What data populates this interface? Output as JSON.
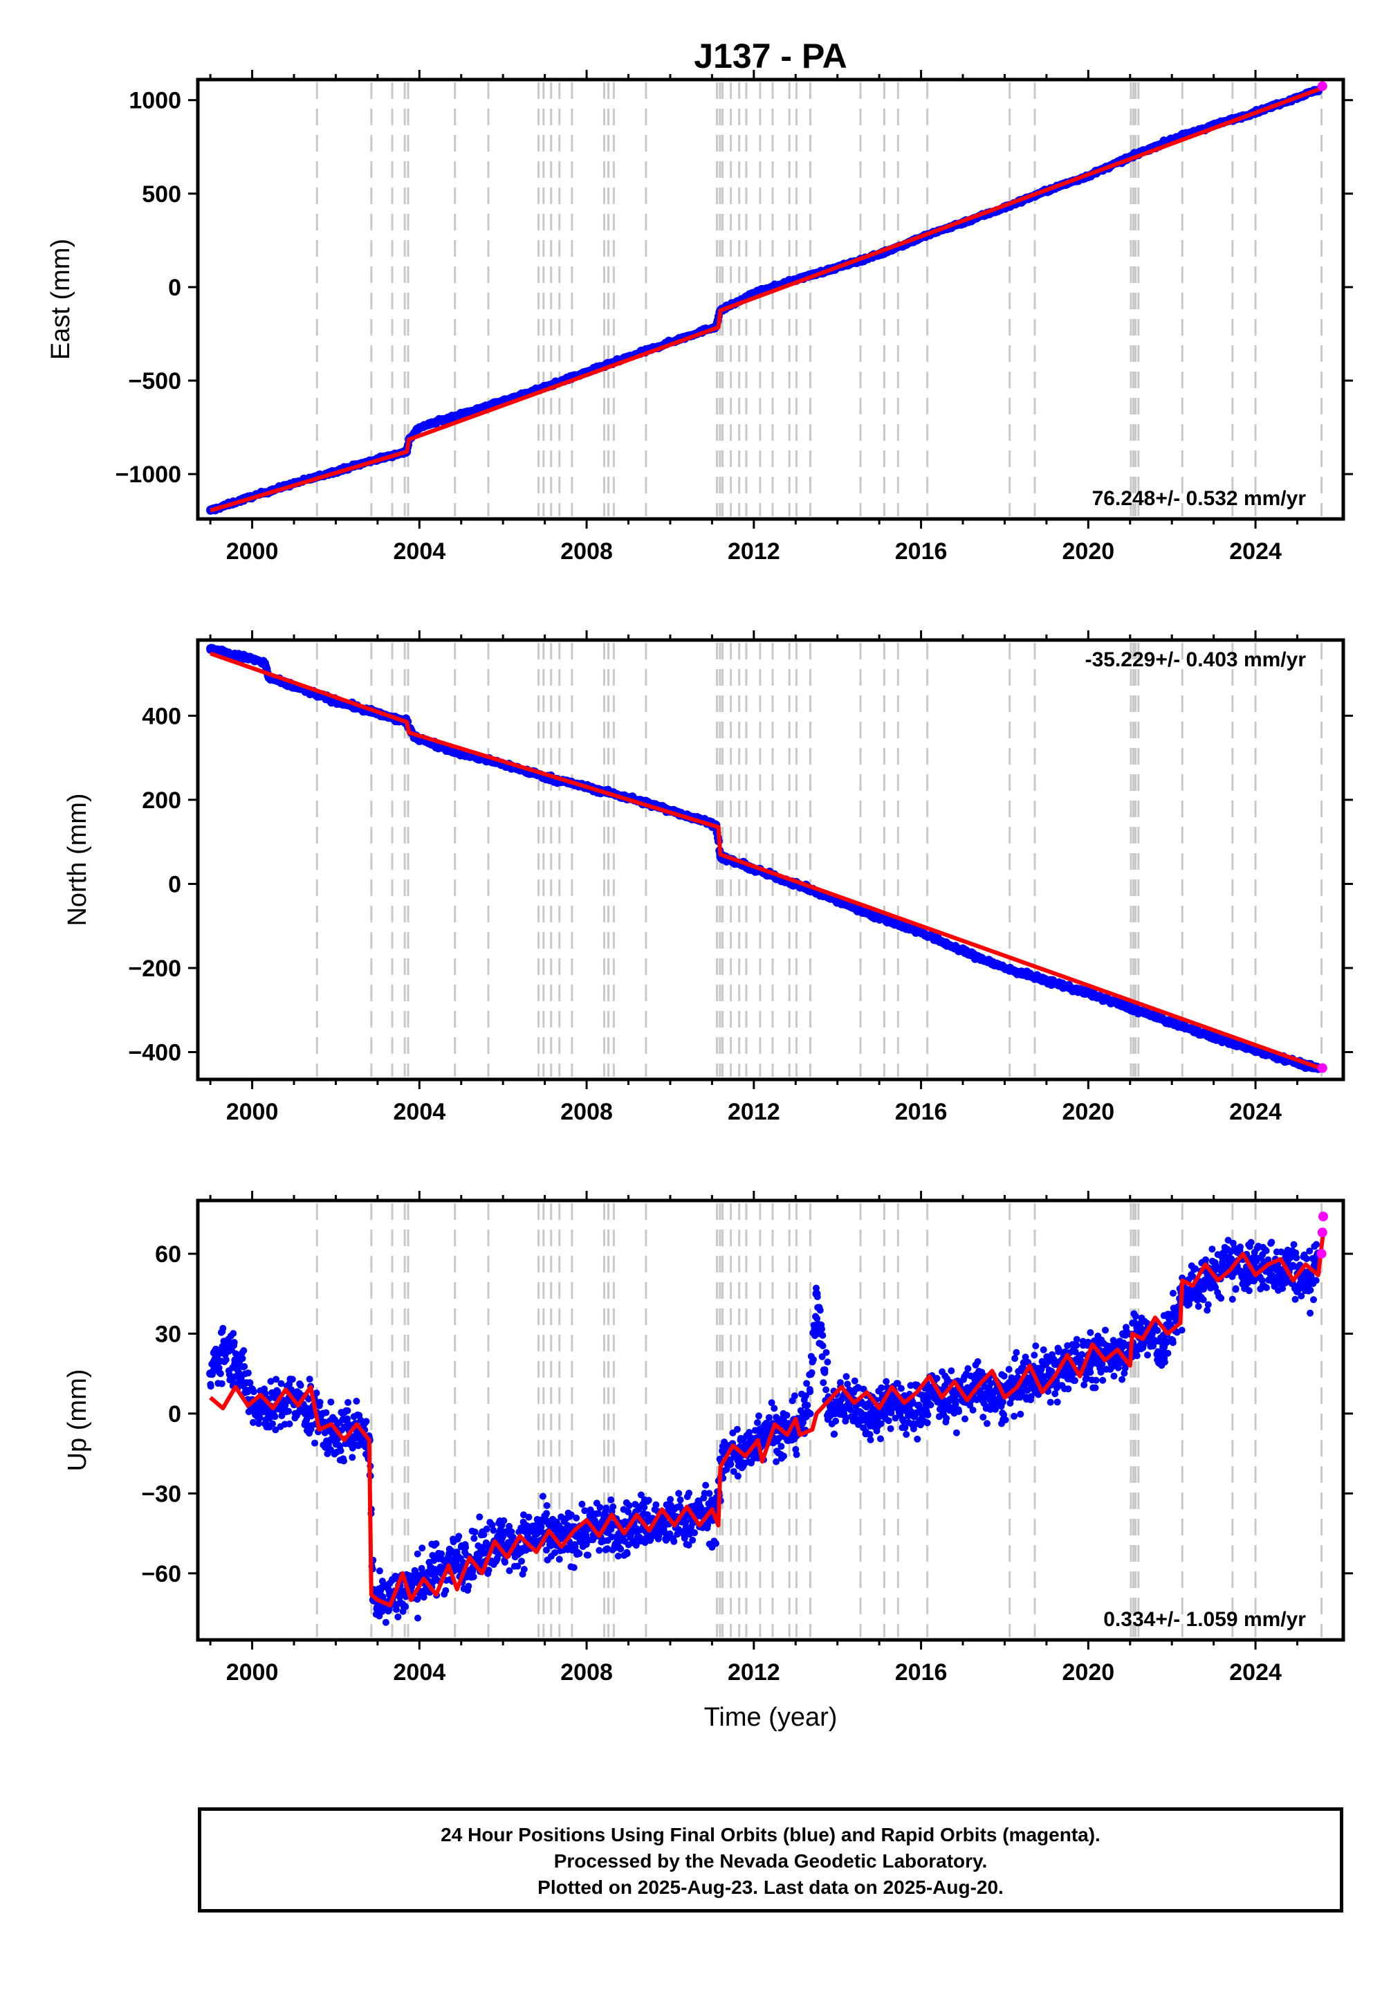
{
  "title": "J137 - PA",
  "chart_data": [
    {
      "type": "scatter",
      "panel": "east",
      "ylabel": "East (mm)",
      "xlabel": "",
      "xlim": [
        1998.7,
        2026.1
      ],
      "ylim": [
        -1240,
        1110
      ],
      "xticks": [
        2000,
        2004,
        2008,
        2012,
        2016,
        2020,
        2024
      ],
      "xtick_labels": [
        "2000",
        "2004",
        "2008",
        "2012",
        "2016",
        "2020",
        "2024"
      ],
      "yticks": [
        -1000,
        -500,
        0,
        500,
        1000
      ],
      "ytick_labels": [
        "−1000",
        "−500",
        "0",
        "500",
        "1000"
      ],
      "rate_label": "76.248+/- 0.532 mm/yr",
      "rate_position": "bottom-right",
      "series": [
        {
          "role": "final-orbits",
          "color": "#0000ff",
          "x": [
            1999.0,
            2000.0,
            2001.0,
            2002.0,
            2003.0,
            2003.7,
            2003.75,
            2004.0,
            2005.0,
            2006.0,
            2007.0,
            2008.0,
            2009.0,
            2010.0,
            2011.1,
            2011.2,
            2012.0,
            2013.0,
            2014.0,
            2015.0,
            2016.0,
            2017.0,
            2018.0,
            2019.0,
            2020.0,
            2021.0,
            2022.0,
            2023.0,
            2024.0,
            2025.5
          ],
          "y": [
            -1195,
            -1120,
            -1050,
            -985,
            -920,
            -880,
            -815,
            -750,
            -680,
            -610,
            -535,
            -455,
            -375,
            -295,
            -210,
            -125,
            -35,
            40,
            105,
            175,
            265,
            345,
            425,
            515,
            595,
            695,
            790,
            865,
            935,
            1055
          ]
        },
        {
          "role": "rapid-orbits",
          "color": "#ff00ff",
          "x": [
            2025.6
          ],
          "y": [
            1075
          ]
        }
      ],
      "model_line": {
        "color": "#ff0000",
        "x": [
          1999.0,
          2003.7,
          2003.75,
          2011.15,
          2011.2,
          2025.6
        ],
        "y": [
          -1195,
          -880,
          -815,
          -215,
          -125,
          1065
        ]
      }
    },
    {
      "type": "scatter",
      "panel": "north",
      "ylabel": "North (mm)",
      "xlabel": "",
      "xlim": [
        1998.7,
        2026.1
      ],
      "ylim": [
        -465,
        580
      ],
      "xticks": [
        2000,
        2004,
        2008,
        2012,
        2016,
        2020,
        2024
      ],
      "xtick_labels": [
        "2000",
        "2004",
        "2008",
        "2012",
        "2016",
        "2020",
        "2024"
      ],
      "yticks": [
        -400,
        -200,
        0,
        200,
        400
      ],
      "ytick_labels": [
        "−400",
        "−200",
        "0",
        "200",
        "400"
      ],
      "rate_label": "-35.229+/- 0.403 mm/yr",
      "rate_position": "top-right",
      "series": [
        {
          "role": "final-orbits",
          "color": "#0000ff",
          "x": [
            1999.0,
            1999.5,
            2000.0,
            2000.3,
            2000.4,
            2001.0,
            2002.0,
            2003.0,
            2003.7,
            2003.8,
            2004.0,
            2005.0,
            2006.0,
            2007.0,
            2008.0,
            2009.0,
            2010.0,
            2011.1,
            2011.2,
            2012.0,
            2013.0,
            2014.0,
            2015.0,
            2016.0,
            2017.0,
            2018.0,
            2019.0,
            2020.0,
            2021.0,
            2022.0,
            2023.0,
            2024.0,
            2025.5
          ],
          "y": [
            560,
            545,
            535,
            525,
            490,
            470,
            435,
            405,
            385,
            360,
            345,
            310,
            285,
            255,
            230,
            205,
            175,
            140,
            65,
            35,
            0,
            -40,
            -80,
            -115,
            -160,
            -200,
            -230,
            -260,
            -295,
            -330,
            -365,
            -395,
            -440
          ]
        },
        {
          "role": "rapid-orbits",
          "color": "#ff00ff",
          "x": [
            2025.6
          ],
          "y": [
            -438
          ]
        }
      ],
      "model_line": {
        "color": "#ff0000",
        "x": [
          1999.0,
          2003.7,
          2003.75,
          2011.15,
          2011.2,
          2025.6
        ],
        "y": [
          548,
          385,
          360,
          135,
          70,
          -440
        ]
      }
    },
    {
      "type": "scatter",
      "panel": "up",
      "ylabel": "Up (mm)",
      "xlabel": "Time (year)",
      "xlim": [
        1998.7,
        2026.1
      ],
      "ylim": [
        -85,
        80
      ],
      "xticks": [
        2000,
        2004,
        2008,
        2012,
        2016,
        2020,
        2024
      ],
      "xtick_labels": [
        "2000",
        "2004",
        "2008",
        "2012",
        "2016",
        "2020",
        "2024"
      ],
      "yticks": [
        -60,
        -30,
        0,
        30,
        60
      ],
      "ytick_labels": [
        "−60",
        "−30",
        "0",
        "30",
        "60"
      ],
      "rate_label": "0.334+/- 1.059 mm/yr",
      "rate_position": "bottom-right",
      "series": [
        {
          "role": "final-orbits",
          "color": "#0000ff",
          "x": [
            1999.0,
            1999.3,
            1999.6,
            2000.0,
            2000.5,
            2001.0,
            2001.5,
            2002.0,
            2002.5,
            2002.8,
            2002.9,
            2003.3,
            2003.8,
            2004.3,
            2004.8,
            2005.3,
            2005.8,
            2006.3,
            2006.8,
            2007.3,
            2007.8,
            2008.3,
            2008.8,
            2009.3,
            2009.8,
            2010.3,
            2010.8,
            2011.1,
            2011.3,
            2011.8,
            2012.3,
            2012.8,
            2013.3,
            2013.5,
            2013.8,
            2014.3,
            2014.8,
            2015.3,
            2015.8,
            2016.3,
            2016.8,
            2017.3,
            2017.8,
            2018.3,
            2018.8,
            2019.3,
            2019.8,
            2020.3,
            2020.8,
            2021.3,
            2021.8,
            2022.3,
            2022.8,
            2023.3,
            2023.8,
            2024.3,
            2024.8,
            2025.3,
            2025.5
          ],
          "y": [
            15,
            25,
            20,
            5,
            2,
            5,
            0,
            -10,
            -5,
            -10,
            -70,
            -68,
            -65,
            -60,
            -55,
            -55,
            -48,
            -50,
            -45,
            -48,
            -45,
            -42,
            -45,
            -40,
            -42,
            -40,
            -38,
            -38,
            -15,
            -15,
            -5,
            -8,
            0,
            45,
            0,
            5,
            0,
            5,
            0,
            8,
            5,
            10,
            5,
            10,
            15,
            15,
            20,
            20,
            25,
            30,
            25,
            45,
            50,
            55,
            55,
            55,
            55,
            50,
            60
          ]
        },
        {
          "role": "rapid-orbits",
          "color": "#ff00ff",
          "x": [
            2025.58,
            2025.6,
            2025.62
          ],
          "y": [
            60,
            68,
            74
          ]
        }
      ],
      "model_line": {
        "color": "#ff0000",
        "x": [
          1999.0,
          1999.3,
          1999.6,
          1999.9,
          2000.2,
          2000.5,
          2000.8,
          2001.1,
          2001.4,
          2001.6,
          2001.9,
          2002.2,
          2002.5,
          2002.8,
          2002.85,
          2003.0,
          2003.3,
          2003.6,
          2003.8,
          2004.1,
          2004.4,
          2004.7,
          2004.9,
          2005.2,
          2005.5,
          2005.8,
          2006.1,
          2006.4,
          2006.8,
          2007.1,
          2007.4,
          2007.7,
          2008.0,
          2008.3,
          2008.6,
          2008.9,
          2009.2,
          2009.5,
          2009.8,
          2010.1,
          2010.4,
          2010.7,
          2011.0,
          2011.15,
          2011.2,
          2011.5,
          2011.8,
          2012.1,
          2012.2,
          2012.5,
          2012.8,
          2013.0,
          2013.1,
          2013.4,
          2013.5,
          2013.8,
          2014.1,
          2014.4,
          2014.7,
          2015.0,
          2015.3,
          2015.6,
          2015.9,
          2016.2,
          2016.5,
          2016.8,
          2017.1,
          2017.4,
          2017.7,
          2018.0,
          2018.3,
          2018.6,
          2018.9,
          2019.2,
          2019.5,
          2019.8,
          2020.1,
          2020.4,
          2020.7,
          2021.0,
          2021.05,
          2021.3,
          2021.6,
          2021.9,
          2022.2,
          2022.25,
          2022.5,
          2022.8,
          2023.1,
          2023.4,
          2023.7,
          2024.0,
          2024.3,
          2024.6,
          2024.9,
          2025.2,
          2025.5,
          2025.62
        ],
        "y": [
          6,
          2,
          10,
          3,
          7,
          2,
          9,
          3,
          10,
          -6,
          -4,
          -10,
          -4,
          -10,
          -68,
          -70,
          -72,
          -60,
          -70,
          -62,
          -68,
          -57,
          -66,
          -54,
          -60,
          -48,
          -54,
          -46,
          -52,
          -44,
          -50,
          -44,
          -40,
          -46,
          -38,
          -45,
          -38,
          -44,
          -36,
          -42,
          -35,
          -42,
          -36,
          -42,
          -20,
          -12,
          -16,
          -10,
          -18,
          -4,
          -8,
          -2,
          -8,
          -6,
          0,
          5,
          10,
          4,
          8,
          2,
          10,
          4,
          8,
          14,
          6,
          12,
          5,
          11,
          16,
          6,
          10,
          18,
          8,
          14,
          22,
          14,
          26,
          20,
          24,
          18,
          30,
          28,
          36,
          30,
          34,
          50,
          48,
          56,
          50,
          54,
          60,
          52,
          56,
          58,
          50,
          56,
          52,
          68
        ]
      }
    }
  ],
  "event_lines": [
    2001.55,
    2002.85,
    2003.35,
    2003.65,
    2003.73,
    2004.85,
    2005.65,
    2006.85,
    2006.97,
    2007.15,
    2007.35,
    2007.65,
    2008.42,
    2008.52,
    2008.65,
    2009.42,
    2011.12,
    2011.19,
    2011.25,
    2011.45,
    2011.65,
    2011.82,
    2012.15,
    2012.45,
    2012.85,
    2013.02,
    2013.35,
    2014.55,
    2015.12,
    2015.45,
    2016.15,
    2018.12,
    2018.72,
    2021.02,
    2021.08,
    2021.13,
    2021.2,
    2022.25,
    2023.45,
    2024.0,
    2025.58
  ],
  "caption": {
    "line1": "24 Hour Positions Using Final Orbits (blue) and Rapid Orbits (magenta).",
    "line2": "Processed by the Nevada Geodetic Laboratory.",
    "line3": "Plotted on 2025-Aug-23. Last data on 2025-Aug-20."
  }
}
